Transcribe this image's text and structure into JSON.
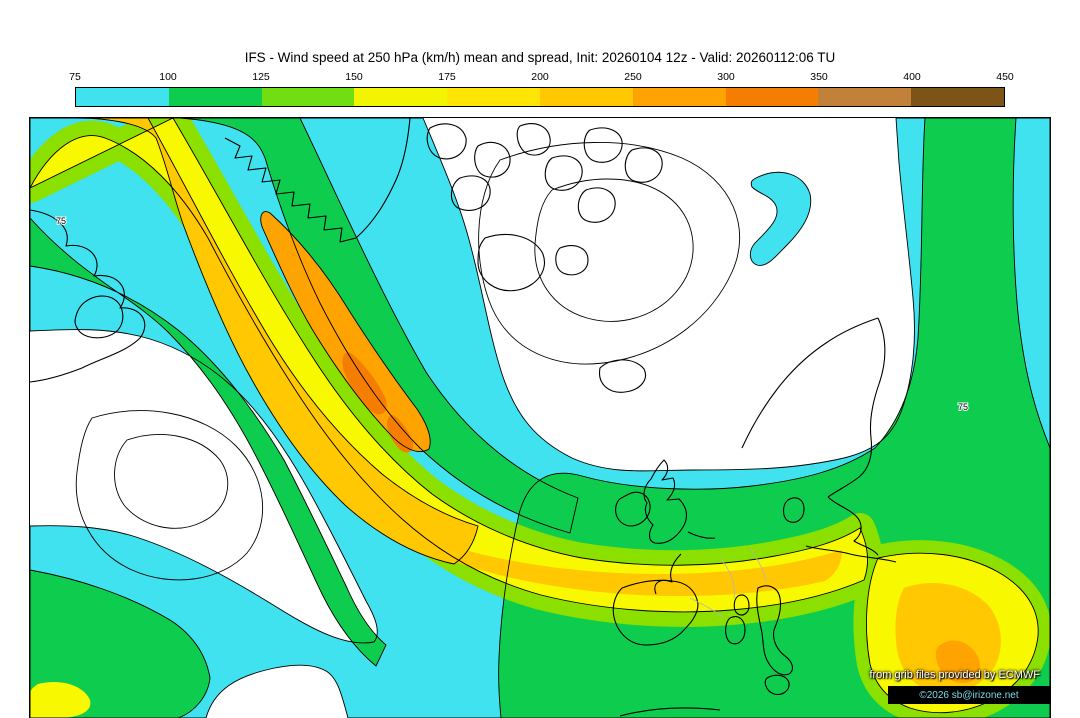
{
  "title": "IFS - Wind speed at 250 hPa (km/h) mean and spread, Init: 20260104 12z - Valid: 20260112:06 TU",
  "colorbar": {
    "tick_labels": [
      "75",
      "100",
      "125",
      "150",
      "175",
      "200",
      "250",
      "300",
      "350",
      "400",
      "450"
    ],
    "segment_colors": [
      "#3FE2EE",
      "#0ECC4D",
      "#70DE12",
      "#F2F402",
      "#FFE505",
      "#FFC800",
      "#FFA301",
      "#F57D02",
      "#C28139",
      "#7D5418"
    ]
  },
  "palette": {
    "cyan": "#3FE2EE",
    "green": "#0ECC4D",
    "chartreuse": "#8BE000",
    "yellow": "#F8F800",
    "gold": "#FFC800",
    "orange": "#FFA301",
    "deep_orange": "#F57D02"
  },
  "map": {
    "credit": "from grib files provided by ECMWF",
    "copyright": "©2026 sb@irizone.net",
    "contour_labels": [
      "75",
      "75"
    ]
  }
}
